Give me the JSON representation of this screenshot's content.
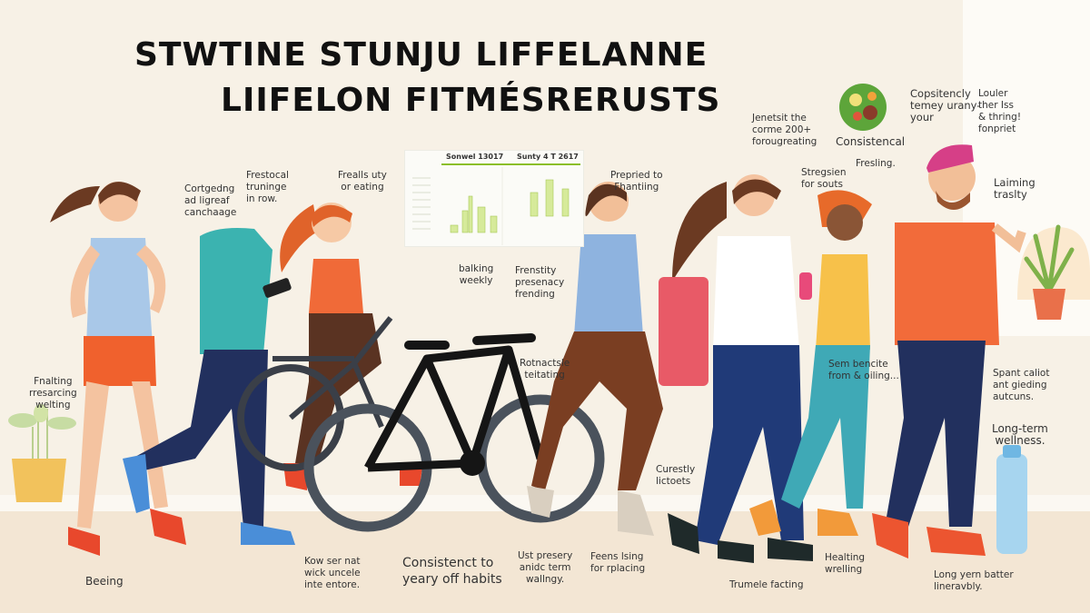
{
  "title": {
    "line1": "STWTINE STUNJU LIFFELANNE",
    "line2": "LIIFELON FITMÉSRERUSTS"
  },
  "chart_panel": {
    "left_heading": "Sonwel 13017",
    "right_heading": "Sunty 4 T 2617",
    "bar_color": "#d6ea9a"
  },
  "labels": [
    "Cortgedng\nad ligreaf\ncanchaage",
    "Frestocal\ntruninge\nin row.",
    "Frealls uty\nor eating",
    "balking\nweekly",
    "Frenstity\npresenacy\nfrending",
    "Prepried to\nFhantiing",
    "Jenetsit the\ncorme 200+\nforougreating",
    "Consistencal",
    "Fresling.",
    "Copsitencly\ntemey urany-\nyour",
    "Louler\nther Iss\n& thring!\nfonpriet",
    "Stregsien\nfor souts",
    "Laiming\ntraslty",
    "Fnalting\nrresarcing\nwelting",
    "Rotnactsle\nteitating",
    "Sem bencite\nfrom & oiling...",
    "Spant caliot\nant gieding\nautcuns.",
    "Curestly\nlictoets",
    "Long-term\nwellness.",
    "Beeing",
    "Kow ser nat\nwick uncele\ninte entore.",
    "Consistenct to\nyeary off habits",
    "Ust presery\nanidc term\nwallngy.",
    "Feens lsing\nfor rplacing",
    "Healting\nwrelling",
    "Trumele facting",
    "Long yern batter\nlineravbly."
  ],
  "colors": {
    "background": "#f7f1e6",
    "accent_orange": "#f26b3a",
    "navy": "#22305e",
    "teal": "#3bb3b0"
  }
}
